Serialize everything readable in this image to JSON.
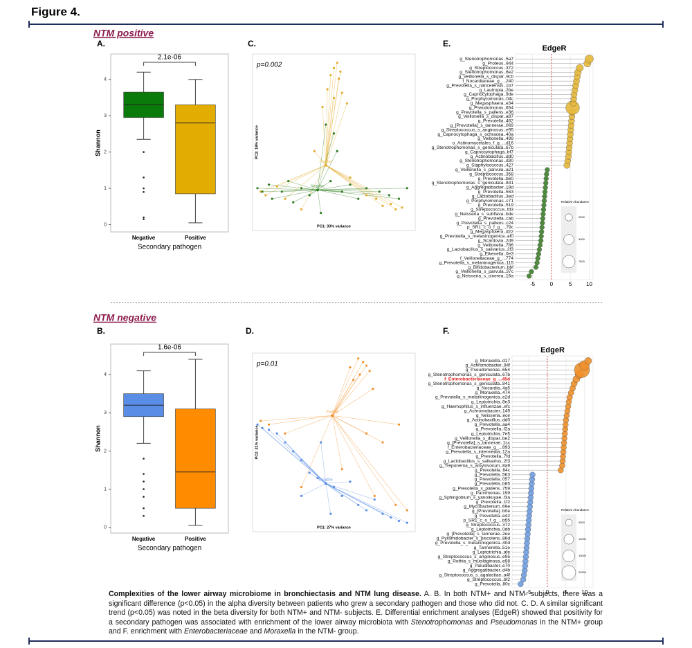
{
  "figure_title": "Figure 4.",
  "headings": [
    "NTM positive",
    "NTM negative"
  ],
  "chart_data": [
    {
      "type": "box",
      "panel": "A.",
      "annotation": "2.1e-06",
      "ylabel": "Shannon",
      "xlabel": "Secondary pathogen",
      "categories": [
        "Negative",
        "Positive"
      ],
      "boxes": [
        {
          "color": "#0a7a0a",
          "whislo": 2.35,
          "q1": 2.95,
          "median": 3.3,
          "q3": 3.65,
          "whishi": 4.2,
          "outliers": [
            2.0,
            1.3,
            1.0,
            0.9,
            0.2,
            0.15
          ]
        },
        {
          "color": "#e3ac00",
          "whislo": 0.05,
          "q1": 0.85,
          "median": 2.8,
          "q3": 3.3,
          "whishi": 4.0,
          "outliers": []
        }
      ],
      "ylim": [
        -0.2,
        4.7
      ],
      "yticks": [
        0,
        1,
        2,
        3,
        4
      ]
    },
    {
      "type": "scatter",
      "panel": "C.",
      "annotation": "p=0.002",
      "xlabel": "PC1: 33% variance",
      "ylabel": "PC2: 19% variance",
      "xlim": [
        0,
        100
      ],
      "ylim": [
        0,
        100
      ],
      "series": [
        {
          "name": "Positive",
          "color": "#e3ac2a",
          "centroid": [
            45,
            37
          ],
          "x": [
            52,
            50,
            54,
            48,
            53,
            46,
            55,
            50,
            43,
            58,
            85,
            88,
            80,
            92,
            76,
            70,
            5,
            8,
            15,
            20,
            30,
            60,
            38
          ],
          "values": [
            95,
            92,
            90,
            88,
            86,
            80,
            78,
            75,
            70,
            72,
            15,
            12,
            14,
            13,
            18,
            20,
            22,
            20,
            25,
            18,
            12,
            30,
            45
          ]
        },
        {
          "name": "Negative",
          "color": "#2e7d1e",
          "centroid": [
            40,
            23
          ],
          "x": [
            3,
            6,
            10,
            12,
            18,
            22,
            25,
            30,
            35,
            42,
            48,
            55,
            60,
            65,
            70,
            78,
            84,
            90,
            95,
            52,
            45,
            50
          ],
          "values": [
            24,
            22,
            26,
            18,
            22,
            28,
            16,
            24,
            20,
            10,
            28,
            22,
            26,
            18,
            24,
            22,
            20,
            18,
            24,
            45,
            60,
            55
          ]
        }
      ]
    },
    {
      "type": "dot",
      "panel": "E.",
      "title": "EdgeR",
      "positive_color": "#e6b83a",
      "negative_color": "#3d7f2a",
      "categories": [
        "g_Stenotrophomonas..5a7",
        "g_Proteus..944",
        "g_Streptococcus..372",
        "g_Stenotrophomonas..6e2",
        "g_Veillonella_s_dispar..9cb",
        "f_Nocardiaceae_g_...240",
        "g_Prevotella_s_nanceiensis..1b7",
        "g_Lautropia..2be",
        "g_Capnocytophaga..9de",
        "g_Porphyromonas..04c",
        "g_Megasphaera..e34",
        "g_Pseudomonas..654",
        "g_Prevotella_s_pallens..e36",
        "g_Veillonella_s_dispar..a87",
        "g_Prevotella..462",
        "g_[Prevotella]_s_tannerae..069",
        "g_Streptococcus_s_anginosus..e95",
        "g_Capnocytophaga_s_ochracea..40a",
        "g_Veillonella..499",
        "o_Actinomycetales_f_g_...d16",
        "g_Stenotrophomonas_s_geniculata..67b",
        "g_Capnocytophaga..bf7",
        "g_Actinobacillus..dd0",
        "g_Stenotrophomonas..d30",
        "g_Staphylococcus..427",
        "g_Veillonella_s_parvula..a21",
        "g_Streptococcus..358",
        "g_Prevotella..b60",
        "g_Stenotrophomonas_s_geniculata..841",
        "g_Aggregatibacter..19d",
        "g_Prevotella..553",
        "g_Lactobacillus..3ed",
        "g_Porphyromonas..c71",
        "g_Prevotella..519",
        "g_Streptococcus..fd3",
        "g_Neisseria_s_subflava..bde",
        "g_Prevotella..cab",
        "g_Prevotella_s_pallens..c24",
        "p_SR1_c_o_f_g_...79c",
        "g_Megasphaera..d22",
        "g_Prevotella_s_melaninogenica..af0",
        "g_Scardovia..2d9",
        "g_Veillonella..786",
        "g_Lactobacillus_s_salivarius..2f3",
        "g_Eikenella..0e3",
        "f_Veillonellaceae_g_...774",
        "g_Prevotella_s_melaninogenica..115",
        "g_Bifidobacterium..bbf",
        "g_Veillonella_s_parvula..37c",
        "g_Neisseria_s_cinerea..16a"
      ],
      "values": [
        10,
        9.5,
        7.5,
        7,
        6.8,
        6.6,
        6.4,
        6.2,
        6,
        5.9,
        5.8,
        5.6,
        5.5,
        5.4,
        5.3,
        5.2,
        5.1,
        5,
        4.9,
        4.8,
        4.7,
        4.6,
        4.5,
        4.3,
        4.1,
        -1.1,
        -1.3,
        -1.4,
        -1.5,
        -1.6,
        -1.7,
        -1.8,
        -1.9,
        -2,
        -2.1,
        -2.2,
        -2.3,
        -2.4,
        -2.5,
        -2.6,
        -2.7,
        -2.8,
        -3,
        -3.2,
        -3.4,
        -3.6,
        -3.8,
        -4.1,
        -5.3,
        -5.9
      ],
      "sizes": [
        3300,
        2500,
        2500,
        2200,
        2000,
        1900,
        1900,
        1800,
        1800,
        1800,
        1900,
        9000,
        1900,
        1800,
        1800,
        1800,
        1800,
        1800,
        1800,
        1800,
        1800,
        1800,
        1800,
        1800,
        1900,
        1100,
        1100,
        1100,
        1100,
        1100,
        1100,
        1100,
        1100,
        1100,
        1100,
        1100,
        1100,
        1100,
        1100,
        1100,
        1100,
        1100,
        1100,
        1100,
        1100,
        1100,
        1100,
        1100,
        1100,
        1100
      ],
      "xlim": [
        -9.5,
        11
      ],
      "xticks": [
        -5,
        0,
        5,
        10
      ],
      "size_legend": {
        "title": "Relative Abundance",
        "values": [
          2500,
          5000,
          7500
        ]
      }
    },
    {
      "type": "box",
      "panel": "B.",
      "annotation": "1.6e-06",
      "ylabel": "Shannon",
      "xlabel": "Secondary pathogen",
      "categories": [
        "Negative",
        "Positive"
      ],
      "boxes": [
        {
          "color": "#5a8ee6",
          "whislo": 2.2,
          "q1": 2.9,
          "median": 3.2,
          "q3": 3.5,
          "whishi": 4.1,
          "outliers": [
            1.8,
            1.4,
            1.2,
            1.0,
            0.8,
            0.5,
            0.3
          ]
        },
        {
          "color": "#ff8c00",
          "whislo": 0.05,
          "q1": 0.5,
          "median": 1.45,
          "q3": 3.1,
          "whishi": 4.4,
          "outliers": []
        }
      ],
      "ylim": [
        -0.15,
        4.8
      ],
      "yticks": [
        0,
        1,
        2,
        3,
        4
      ]
    },
    {
      "type": "scatter",
      "panel": "D.",
      "annotation": "p=0.01",
      "xlabel": "PC1: 27% variance",
      "ylabel": "PC2: 21% variance",
      "xlim": [
        0,
        100
      ],
      "ylim": [
        0,
        100
      ],
      "series": [
        {
          "name": "Positive",
          "color": "#f0902a",
          "centroid": [
            49,
            65
          ],
          "x": [
            65,
            68,
            70,
            72,
            66,
            62,
            74,
            60,
            90,
            80,
            70,
            10,
            5,
            20,
            95,
            88,
            75,
            55,
            30
          ],
          "values": [
            97,
            95,
            93,
            90,
            88,
            85,
            80,
            92,
            60,
            50,
            55,
            60,
            62,
            55,
            12,
            15,
            20,
            35,
            25
          ]
        },
        {
          "name": "Negative",
          "color": "#5a8ee6",
          "centroid": [
            45,
            27
          ],
          "x": [
            3,
            6,
            10,
            15,
            20,
            25,
            30,
            35,
            40,
            50,
            55,
            60,
            65,
            70,
            75,
            80,
            85,
            90,
            95,
            48,
            42,
            30
          ],
          "values": [
            60,
            58,
            57,
            55,
            50,
            45,
            40,
            33,
            30,
            25,
            20,
            28,
            15,
            12,
            18,
            10,
            8,
            6,
            5,
            10,
            50,
            20
          ]
        }
      ]
    },
    {
      "type": "dot",
      "panel": "F.",
      "title": "EdgeR",
      "positive_color": "#f0902a",
      "negative_color": "#6f9de0",
      "highlight_index": 4,
      "highlight_color": "#e0201c",
      "categories": [
        "g_Moraxella..d17",
        "g_Achromobacter..94f",
        "g_Pseudomonas..654",
        "g_Stenotrophomonas_s_geniculata..67b",
        "f_Enterobacteriaceae_g_...45d",
        "g_Stenotrophomonas_s_geniculata..841",
        "g_Nocardia..4a5",
        "g_Moraxella..474",
        "g_Prevotella_s_melaninogenica..e2d",
        "g_Leptotrichia..8e3",
        "g_Haemophilus_s_influenzae..efc",
        "g_Achromobacter..149",
        "g_Neisseria..ece",
        "g_Actinobacillus..dd0",
        "g_Prevotella..aa4",
        "g_Prevotella..f2a",
        "g_Leptotrichia..7e5",
        "g_Veillonella_s_dispar..be2",
        "g_[Prevotella]_s_tannerae..1cc",
        "f_Enterobacteriaceae_g_...893",
        "g_Prevotella_s_intermedia..12a",
        "g_Prevotella..7fd",
        "g_Lactobacillus_s_salivarius..2f3",
        "g_Treponema_s_amylovorum..8a9",
        "g_Prevotella..64c",
        "g_Prevotella..563",
        "g_Prevotella..057",
        "g_Prevotella..b85",
        "g_Prevotella_s_pallens..759",
        "g_Parvimonas..199",
        "g_Sphingobium_s_yanoikuyae..f3a",
        "g_Prevotella..1f2",
        "g_Mycobacterium..69e",
        "g_[Prevotella]..b0e",
        "g_Prevotella..e42",
        "p_SR1_c_o_f_g_...b55",
        "g_Streptococcus..372",
        "g_Leptotrichia..0db",
        "g_[Prevotella]_s_tannerae..2ee",
        "g_Pyramidobacter_s_piscolens..86d",
        "g_Prevotella_s_melaninogenica..40d",
        "g_Tannerella..51e",
        "g_Leptotrichia..afe",
        "g_Streptococcus_s_anginosus..e95",
        "g_Rothia_s_mucilaginosa..e98",
        "g_Paludibacter..e70",
        "g_Aggregatibacter..d4b",
        "g_Streptococcus_s_agalactiae..a4f",
        "g_Streptococcus..bf2",
        "g_Prevotella..80c"
      ],
      "values": [
        11,
        10,
        9.3,
        8.6,
        7.8,
        7.2,
        6.8,
        6.4,
        6,
        5.8,
        5.6,
        5.4,
        5.2,
        5,
        4.9,
        4.8,
        4.7,
        4.6,
        4.5,
        4.4,
        4.3,
        4.2,
        4.1,
        4,
        3.6,
        -4,
        -4.1,
        -4.2,
        -4.3,
        -4.4,
        -4.5,
        -4.6,
        -4.7,
        -4.8,
        -4.9,
        -5,
        -5.1,
        -5.2,
        -5.3,
        -5.4,
        -5.5,
        -5.6,
        -5.7,
        -5.8,
        -5.9,
        -6,
        -6.1,
        -6.3,
        -6.5,
        -7.2
      ],
      "sizes": [
        5000,
        10000,
        24000,
        7000,
        5000,
        4000,
        3500,
        3500,
        3500,
        3200,
        3200,
        3200,
        3200,
        3200,
        3200,
        3200,
        3200,
        3200,
        3200,
        3200,
        3200,
        3200,
        3200,
        3200,
        3200,
        3200,
        3200,
        3200,
        3200,
        3200,
        3200,
        3200,
        3200,
        3200,
        3200,
        3200,
        3200,
        3200,
        3200,
        3200,
        3200,
        3200,
        3200,
        3200,
        3200,
        3200,
        3200,
        3200,
        3200,
        3200
      ],
      "xlim": [
        -9.5,
        12.3
      ],
      "xticks": [
        -5,
        0,
        5,
        10
      ],
      "size_legend": {
        "title": "Relative Abundance",
        "values": [
          5000,
          10000,
          15000,
          20000
        ]
      }
    }
  ],
  "caption": {
    "title": "Complexities of the lower airway microbiome in bronchiectasis and NTM lung disease.",
    "parts": [
      " A. B. In both NTM+ and NTM- subjects, there was a significant difference (p<0.05) in the alpha diversity between patients who grew a secondary pathogen and those who did not. C. D.  A similar significant trend (p<0.05) was noted in the beta diversity for both NTM+ and NTM- subjects. E. Differential enrichment analyses (EdgeR) showed that positivity for a secondary pathogen was associated with enrichment of the lower airway microbiota with ",
      "Stenotrophomonas",
      " and ",
      "Pseudomonas",
      " in the NTM+ group and F. enrichment with ",
      "Enterobacteriaceae",
      " and ",
      "Moraxella",
      " in the NTM- group."
    ]
  }
}
